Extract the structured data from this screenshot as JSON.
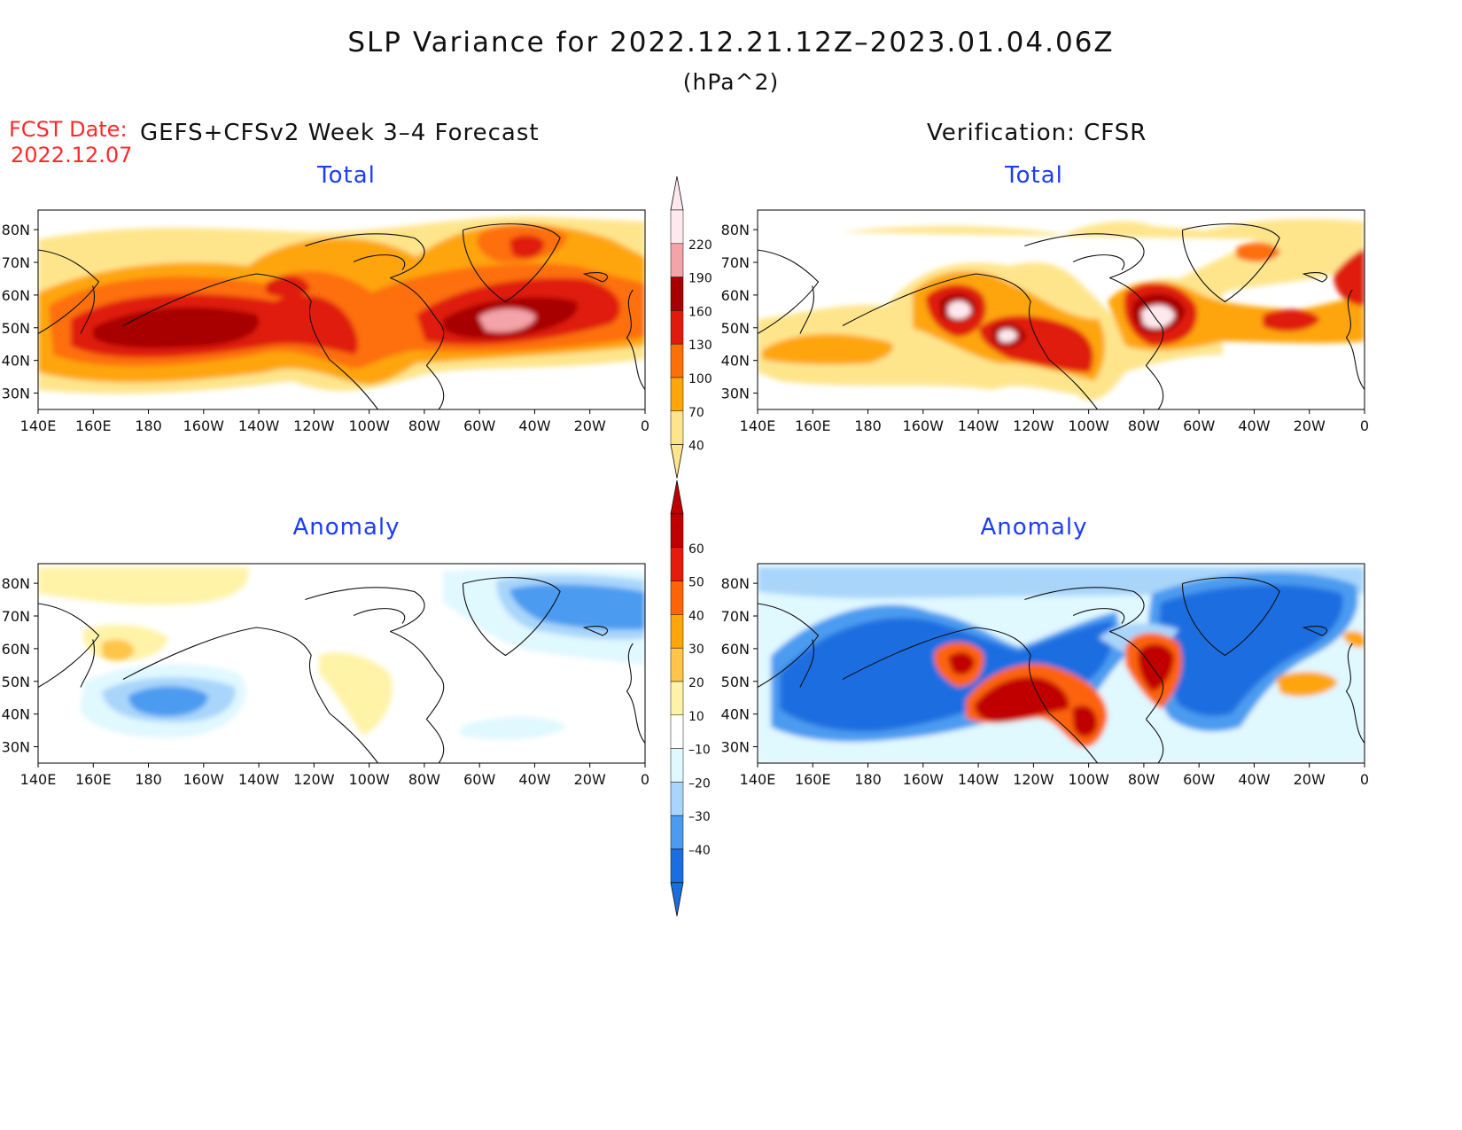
{
  "title": "SLP Variance for 2022.12.21.12Z–2023.01.04.06Z",
  "units": "(hPa^2)",
  "fcst_label": "FCST Date:",
  "fcst_date": "2022.12.07",
  "forecast_header": "GEFS+CFSv2 Week 3–4 Forecast",
  "verification_header": "Verification: CFSR",
  "panels": {
    "forecast_total": {
      "title": "Total"
    },
    "verification_total": {
      "title": "Total"
    },
    "forecast_anomaly": {
      "title": "Anomaly"
    },
    "verification_anomaly": {
      "title": "Anomaly"
    }
  },
  "lat_labels": [
    "80N",
    "70N",
    "60N",
    "50N",
    "40N",
    "30N"
  ],
  "lon_labels": [
    "140E",
    "160E",
    "180",
    "160W",
    "140W",
    "120W",
    "100W",
    "80W",
    "60W",
    "40W",
    "20W",
    "0"
  ],
  "colorbars": {
    "total": {
      "levels": [
        "40",
        "70",
        "100",
        "130",
        "160",
        "190",
        "220"
      ],
      "colors": [
        "#fee58c",
        "#fea50a",
        "#fd6f07",
        "#df1c0c",
        "#a80000",
        "#f4a3a8",
        "#ffe9ee"
      ]
    },
    "anomaly": {
      "levels": [
        "60",
        "50",
        "40",
        "30",
        "20",
        "10",
        "–10",
        "–20",
        "–30",
        "–40"
      ],
      "colors": [
        "#c00000",
        "#e51c0c",
        "#fd6407",
        "#fea50a",
        "#fec54a",
        "#fff3a8",
        "#ffffff",
        "#e0f8ff",
        "#a9d5fa",
        "#4b9bf0",
        "#1a6ee0"
      ]
    }
  }
}
